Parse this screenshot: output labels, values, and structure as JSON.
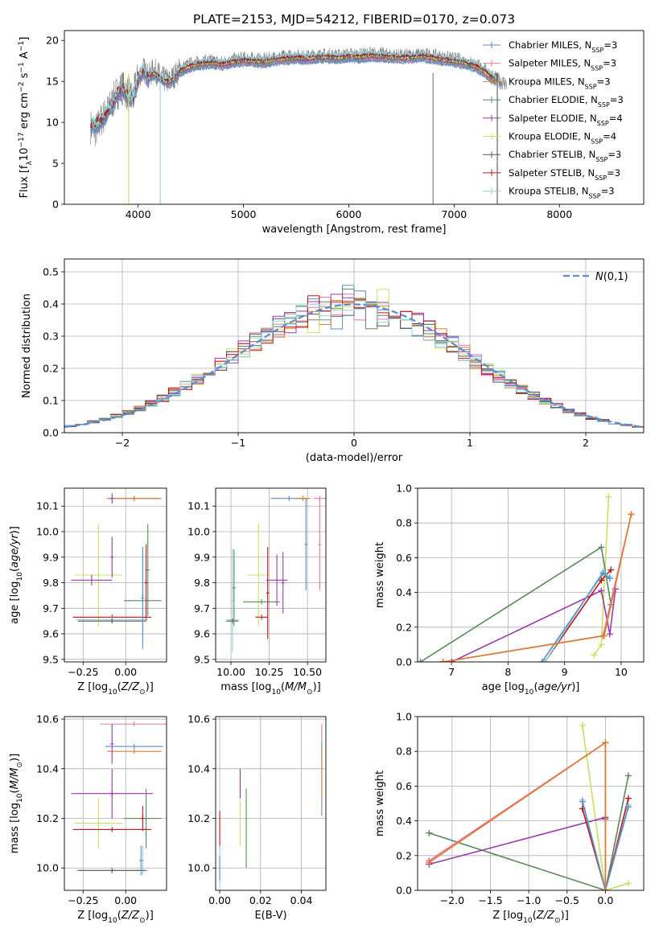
{
  "figure_title": "PLATE=2153, MJD=54212, FIBERID=0170, z=0.073",
  "legend_names": [
    "Chabrier MILES, N_SSP=3",
    "Salpeter MILES, N_SSP=3",
    "Kroupa MILES, N_SSP=3",
    "Chabrier ELODIE, N_SSP=3",
    "Salpeter ELODIE, N_SSP=4",
    "Kroupa ELODIE, N_SSP=4",
    "Chabrier STELIB, N_SSP=3",
    "Salpeter STELIB, N_SSP=3",
    "Kroupa STELIB, N_SSP=3"
  ],
  "legend_colors": [
    "#5d8ec4",
    "#e377a8",
    "#e07b2a",
    "#5a8a5a",
    "#9a3aaa",
    "#c8e060",
    "#555555",
    "#c0141c",
    "#8ad4dc"
  ],
  "chart_data": [
    {
      "id": "spectrum",
      "type": "line",
      "title": "PLATE=2153, MJD=54212, FIBERID=0170, z=0.073",
      "xlabel": "wavelength [Angstrom, rest frame]",
      "ylabel": "Flux [f_λ 10^-17 erg cm^-2 s^-1 A^-1]",
      "xlim": [
        3300,
        8800
      ],
      "ylim": [
        0,
        21.2
      ],
      "xticks": [
        4000,
        5000,
        6000,
        7000,
        8000
      ],
      "yticks": [
        0,
        5,
        10,
        15,
        20
      ],
      "grid": false,
      "legend_position": "top-right",
      "observed_spectrum": {
        "color": "#808080",
        "x": [
          3550,
          3600,
          3650,
          3700,
          3750,
          3800,
          3850,
          3900,
          3950,
          4000,
          4050,
          4100,
          4150,
          4200,
          4250,
          4300,
          4400,
          4500,
          4600,
          4700,
          4800,
          4900,
          5000,
          5100,
          5200,
          5300,
          5400,
          5500,
          5600,
          5700,
          5800,
          5900,
          6000,
          6100,
          6200,
          6300,
          6400,
          6500,
          6600,
          6700,
          6800,
          6900,
          7000,
          7100,
          7200,
          7300,
          7400,
          7500
        ],
        "y": [
          9.5,
          9.0,
          10.3,
          11.2,
          12.3,
          13.6,
          14.3,
          13.5,
          13.0,
          15.5,
          16.5,
          15.6,
          16.4,
          15.8,
          15.2,
          15.0,
          16.5,
          17.0,
          17.3,
          17.4,
          17.2,
          17.5,
          17.7,
          17.6,
          17.5,
          17.8,
          17.9,
          18.0,
          17.9,
          18.1,
          18.1,
          18.0,
          18.2,
          18.1,
          18.3,
          18.2,
          18.1,
          18.0,
          18.1,
          18.2,
          18.0,
          17.8,
          17.6,
          17.4,
          17.0,
          16.2,
          15.2,
          14.7
        ]
      },
      "model_spectrum": {
        "x": [
          3550,
          3600,
          3650,
          3700,
          3750,
          3800,
          3850,
          3900,
          3950,
          4000,
          4050,
          4100,
          4150,
          4200,
          4250,
          4300,
          4400,
          4500,
          4600,
          4700,
          4800,
          4900,
          5000,
          5100,
          5200,
          5300,
          5400,
          5500,
          5600,
          5700,
          5800,
          5900,
          6000,
          6100,
          6200,
          6300,
          6400,
          6500,
          6600,
          6700,
          6800,
          6900,
          7000,
          7100,
          7200,
          7300,
          7400
        ],
        "y": [
          9.6,
          9.6,
          10.2,
          11.0,
          12.0,
          13.4,
          14.0,
          13.2,
          12.7,
          15.2,
          16.2,
          15.3,
          16.0,
          15.5,
          15.0,
          14.8,
          16.2,
          16.8,
          17.1,
          17.2,
          17.0,
          17.3,
          17.5,
          17.4,
          17.3,
          17.6,
          17.7,
          17.8,
          17.7,
          17.9,
          17.9,
          17.8,
          18.0,
          17.9,
          18.1,
          18.0,
          17.9,
          17.8,
          17.9,
          18.0,
          17.8,
          17.6,
          17.4,
          17.2,
          16.8,
          16.0,
          15.0
        ]
      }
    },
    {
      "id": "residuals",
      "type": "line",
      "xlabel": "(data-model)/error",
      "ylabel": "Normed distribution",
      "xlim": [
        -2.5,
        2.5
      ],
      "ylim": [
        0,
        0.54
      ],
      "xticks": [
        -2,
        -1,
        0,
        1,
        2
      ],
      "yticks": [
        0.0,
        0.1,
        0.2,
        0.3,
        0.4,
        0.5
      ],
      "grid": true,
      "legend_position": "top-right",
      "gaussian_label": "N(0,1)",
      "gaussian_color": "#5b8ad6"
    },
    {
      "id": "age-vs-Z",
      "type": "scatter",
      "xlabel": "Z [log10(Z/Z⊙)]",
      "ylabel": "age  [log10(age/yr)]",
      "xlim": [
        -0.36,
        0.24
      ],
      "ylim": [
        9.49,
        10.17
      ],
      "xticks": [
        -0.25,
        0.0
      ],
      "yticks": [
        9.5,
        9.6,
        9.7,
        9.8,
        9.9,
        10.0,
        10.1
      ],
      "grid": true,
      "points": [
        {
          "series": 0,
          "x": 0.05,
          "y": 10.13,
          "ex": 0.15,
          "ey": 0.01
        },
        {
          "series": 2,
          "x": 0.05,
          "y": 10.13,
          "ex": 0.16,
          "ey": 0.01
        },
        {
          "series": 4,
          "x": -0.08,
          "y": 10.13,
          "ex": 0.01,
          "ey": 0.02
        },
        {
          "series": 5,
          "x": -0.16,
          "y": 9.83,
          "ex": 0.14,
          "ey": 0.2
        },
        {
          "series": 4,
          "x": -0.2,
          "y": 9.81,
          "ex": 0.12,
          "ey": 0.02
        },
        {
          "series": 4,
          "x": -0.08,
          "y": 9.9,
          "ex": 0.01,
          "ey": 0.08
        },
        {
          "series": 3,
          "x": 0.1,
          "y": 9.73,
          "ex": 0.11,
          "ey": 0.01
        },
        {
          "series": 3,
          "x": 0.13,
          "y": 9.85,
          "ex": 0.01,
          "ey": 0.18
        },
        {
          "series": 7,
          "x": -0.08,
          "y": 9.665,
          "ex": 0.23,
          "ey": 0.01
        },
        {
          "series": 7,
          "x": 0.12,
          "y": 9.8,
          "ex": 0.01,
          "ey": 0.15
        },
        {
          "series": 8,
          "x": -0.08,
          "y": 9.655,
          "ex": 0.21,
          "ey": 0.01
        },
        {
          "series": 8,
          "x": 0.1,
          "y": 9.75,
          "ex": 0.01,
          "ey": 0.18
        },
        {
          "series": 6,
          "x": -0.08,
          "y": 9.65,
          "ex": 0.2,
          "ey": 0.01
        },
        {
          "series": 0,
          "x": 0.1,
          "y": 9.74,
          "ex": 0.01,
          "ey": 0.2
        }
      ]
    },
    {
      "id": "age-vs-mass",
      "type": "scatter",
      "xlabel": "mass [log10(M/M⊙)]",
      "ylabel": "",
      "xlim": [
        9.9,
        10.62
      ],
      "ylim": [
        9.49,
        10.17
      ],
      "xticks": [
        10.0,
        10.25,
        10.5
      ],
      "yticks": [
        9.5,
        9.6,
        9.7,
        9.8,
        9.9,
        10.0,
        10.1
      ],
      "grid": true,
      "points": [
        {
          "series": 0,
          "x": 10.38,
          "y": 10.13,
          "ex": 0.12,
          "ey": 0.01
        },
        {
          "series": 2,
          "x": 10.47,
          "y": 10.13,
          "ex": 0.05,
          "ey": 0.01
        },
        {
          "series": 1,
          "x": 10.58,
          "y": 10.13,
          "ex": 0.04,
          "ey": 0.01
        },
        {
          "series": 1,
          "x": 10.58,
          "y": 9.95,
          "ex": 0.01,
          "ey": 0.18
        },
        {
          "series": 0,
          "x": 10.49,
          "y": 9.95,
          "ex": 0.01,
          "ey": 0.18
        },
        {
          "series": 5,
          "x": 10.18,
          "y": 9.83,
          "ex": 0.07,
          "ey": 0.2
        },
        {
          "series": 4,
          "x": 10.3,
          "y": 9.81,
          "ex": 0.07,
          "ey": 0.1
        },
        {
          "series": 3,
          "x": 10.2,
          "y": 9.725,
          "ex": 0.12,
          "ey": 0.01
        },
        {
          "series": 7,
          "x": 10.2,
          "y": 9.665,
          "ex": 0.04,
          "ey": 0.01
        },
        {
          "series": 7,
          "x": 10.24,
          "y": 9.76,
          "ex": 0.01,
          "ey": 0.18
        },
        {
          "series": 8,
          "x": 10.01,
          "y": 9.655,
          "ex": 0.04,
          "ey": 0.01
        },
        {
          "series": 8,
          "x": 10.01,
          "y": 9.73,
          "ex": 0.01,
          "ey": 0.2
        },
        {
          "series": 6,
          "x": 10.01,
          "y": 9.65,
          "ex": 0.04,
          "ey": 0.01
        },
        {
          "series": 3,
          "x": 10.02,
          "y": 9.78,
          "ex": 0.01,
          "ey": 0.15
        },
        {
          "series": 4,
          "x": 10.34,
          "y": 9.8,
          "ex": 0.01,
          "ey": 0.12
        }
      ]
    },
    {
      "id": "mass-weight-vs-age",
      "type": "line",
      "xlabel": "age  [log10(age/yr)]",
      "ylabel": "mass weight",
      "xlim": [
        6.4,
        10.4
      ],
      "ylim": [
        0,
        1.0
      ],
      "xticks": [
        7,
        8,
        9,
        10
      ],
      "yticks": [
        0.0,
        0.2,
        0.4,
        0.6,
        0.8,
        1.0
      ],
      "grid": true,
      "series": [
        {
          "series": 5,
          "x": [
            9.52,
            9.65,
            9.78
          ],
          "y": [
            0.04,
            0.1,
            0.95
          ]
        },
        {
          "series": 3,
          "x": [
            6.45,
            9.65,
            9.82
          ],
          "y": [
            0.0,
            0.66,
            0.33
          ]
        },
        {
          "series": 4,
          "x": [
            7.0,
            9.65,
            9.8,
            9.9
          ],
          "y": [
            0.0,
            0.41,
            0.16,
            0.42
          ]
        },
        {
          "series": 7,
          "x": [
            8.65,
            9.65,
            9.82
          ],
          "y": [
            0.0,
            0.47,
            0.53
          ]
        },
        {
          "series": 8,
          "x": [
            8.65,
            9.68,
            9.8
          ],
          "y": [
            0.0,
            0.52,
            0.49
          ]
        },
        {
          "series": 0,
          "x": [
            8.6,
            9.68,
            9.8
          ],
          "y": [
            0.0,
            0.51,
            0.48
          ]
        },
        {
          "series": 1,
          "x": [
            6.85,
            9.68,
            10.18
          ],
          "y": [
            0.0,
            0.15,
            0.85
          ]
        },
        {
          "series": 2,
          "x": [
            6.85,
            9.7,
            10.18
          ],
          "y": [
            0.0,
            0.15,
            0.85
          ]
        }
      ]
    },
    {
      "id": "mass-vs-Z",
      "type": "scatter",
      "xlabel": "Z [log10(Z/Z⊙)]",
      "ylabel": "mass [log10(M/M⊙)]",
      "xlim": [
        -0.36,
        0.24
      ],
      "ylim": [
        9.91,
        10.61
      ],
      "xticks": [
        -0.25,
        0.0
      ],
      "yticks": [
        10.0,
        10.2,
        10.4,
        10.6
      ],
      "grid": true,
      "points": [
        {
          "series": 1,
          "x": 0.05,
          "y": 10.58,
          "ex": 0.2,
          "ey": 0.01
        },
        {
          "series": 0,
          "x": 0.05,
          "y": 10.49,
          "ex": 0.17,
          "ey": 0.01
        },
        {
          "series": 2,
          "x": 0.05,
          "y": 10.47,
          "ex": 0.16,
          "ey": 0.01
        },
        {
          "series": 4,
          "x": -0.08,
          "y": 10.5,
          "ex": 0.01,
          "ey": 0.08
        },
        {
          "series": 4,
          "x": -0.08,
          "y": 10.3,
          "ex": 0.24,
          "ey": 0.01
        },
        {
          "series": 4,
          "x": -0.08,
          "y": 10.3,
          "ex": 0.01,
          "ey": 0.1
        },
        {
          "series": 5,
          "x": -0.16,
          "y": 10.18,
          "ex": 0.14,
          "ey": 0.1
        },
        {
          "series": 3,
          "x": 0.1,
          "y": 10.2,
          "ex": 0.11,
          "ey": 0.01
        },
        {
          "series": 3,
          "x": 0.12,
          "y": 10.2,
          "ex": 0.01,
          "ey": 0.12
        },
        {
          "series": 7,
          "x": -0.08,
          "y": 10.155,
          "ex": 0.23,
          "ey": 0.01
        },
        {
          "series": 7,
          "x": 0.1,
          "y": 10.2,
          "ex": 0.01,
          "ey": 0.05
        },
        {
          "series": 8,
          "x": -0.08,
          "y": 9.99,
          "ex": 0.21,
          "ey": 0.01
        },
        {
          "series": 8,
          "x": 0.1,
          "y": 10.03,
          "ex": 0.01,
          "ey": 0.06
        },
        {
          "series": 6,
          "x": -0.08,
          "y": 9.99,
          "ex": 0.2,
          "ey": 0.01
        },
        {
          "series": 0,
          "x": 0.09,
          "y": 10.03,
          "ex": 0.01,
          "ey": 0.06
        }
      ]
    },
    {
      "id": "mass-vs-EBV",
      "type": "scatter",
      "xlabel": "E(B-V)",
      "ylabel": "",
      "xlim": [
        -0.002,
        0.052
      ],
      "ylim": [
        9.91,
        10.61
      ],
      "xticks": [
        0.0,
        0.02,
        0.04
      ],
      "yticks": [
        10.0,
        10.2,
        10.4,
        10.6
      ],
      "grid": true,
      "points": [
        {
          "series": 1,
          "x": 0.05,
          "y": 10.5,
          "ex": 0,
          "ey": 0.08
        },
        {
          "series": 0,
          "x": 0.05,
          "y": 10.36,
          "ex": 0,
          "ey": 0.15
        },
        {
          "series": 2,
          "x": 0.05,
          "y": 10.38,
          "ex": 0,
          "ey": 0.1
        },
        {
          "series": 4,
          "x": 0.01,
          "y": 10.34,
          "ex": 0,
          "ey": 0.06
        },
        {
          "series": 5,
          "x": 0.01,
          "y": 10.18,
          "ex": 0,
          "ey": 0.09
        },
        {
          "series": 3,
          "x": 0.013,
          "y": 10.16,
          "ex": 0,
          "ey": 0.16
        },
        {
          "series": 7,
          "x": 0.0,
          "y": 10.155,
          "ex": 0,
          "ey": 0.075
        },
        {
          "series": 8,
          "x": 0.0,
          "y": 10.01,
          "ex": 0,
          "ey": 0.08
        },
        {
          "series": 0,
          "x": 0.0,
          "y": 10.0,
          "ex": 0,
          "ey": 0.05
        }
      ]
    },
    {
      "id": "mass-weight-vs-Z",
      "type": "line",
      "xlabel": "Z [log10(Z/Z⊙)]",
      "ylabel": "mass weight",
      "xlim": [
        -2.45,
        0.5
      ],
      "ylim": [
        0,
        1.0
      ],
      "xticks": [
        -2.0,
        -1.5,
        -1.0,
        -0.5,
        0.0
      ],
      "yticks": [
        0.0,
        0.2,
        0.4,
        0.6,
        0.8,
        1.0
      ],
      "grid": true,
      "series": [
        {
          "series": 5,
          "x": [
            -0.3,
            0.0,
            0.3
          ],
          "y": [
            0.95,
            0.0,
            0.04
          ]
        },
        {
          "series": 3,
          "x": [
            -2.3,
            0.0,
            0.3
          ],
          "y": [
            0.33,
            0.0,
            0.66
          ]
        },
        {
          "series": 4,
          "x": [
            -2.3,
            0.0,
            0.0
          ],
          "y": [
            0.15,
            0.42,
            0.41
          ]
        },
        {
          "series": 7,
          "x": [
            -0.3,
            0.0,
            0.3
          ],
          "y": [
            0.47,
            0.0,
            0.53
          ]
        },
        {
          "series": 8,
          "x": [
            -0.3,
            0.0,
            0.3
          ],
          "y": [
            0.52,
            0.0,
            0.49
          ]
        },
        {
          "series": 0,
          "x": [
            -0.3,
            0.0,
            0.3
          ],
          "y": [
            0.51,
            0.0,
            0.48
          ]
        },
        {
          "series": 1,
          "x": [
            -2.3,
            0.0,
            0.0
          ],
          "y": [
            0.17,
            0.85,
            0.0
          ]
        },
        {
          "series": 2,
          "x": [
            -2.3,
            0.0,
            0.0
          ],
          "y": [
            0.16,
            0.85,
            0.0
          ]
        }
      ]
    }
  ]
}
